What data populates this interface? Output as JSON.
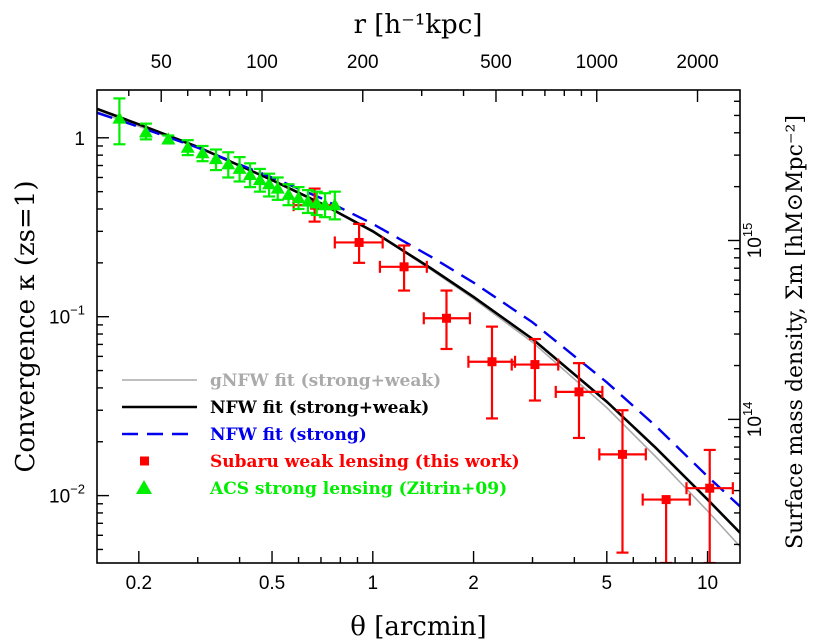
{
  "chart_data": {
    "type": "scatter",
    "xlabel_bottom": "θ [arcmin]",
    "xlabel_top": "r [h⁻¹kpc]",
    "ylabel_left": "Convergence κ (zs=1)",
    "ylabel_right": "Surface mass density, Σm [hM⊙Mpc⁻²]",
    "x_scale": "log",
    "y_scale": "log",
    "xlim": [
      0.15,
      12.5
    ],
    "ylim": [
      0.0042,
      1.85
    ],
    "bottom_ticks": [
      {
        "value": 0.2,
        "label": "0.2"
      },
      {
        "value": 0.5,
        "label": "0.5"
      },
      {
        "value": 1,
        "label": "1"
      },
      {
        "value": 2,
        "label": "2"
      },
      {
        "value": 5,
        "label": "5"
      },
      {
        "value": 10,
        "label": "10"
      }
    ],
    "left_ticks": [
      {
        "value": 1,
        "label": "1"
      },
      {
        "value": 0.1,
        "label": "10",
        "sup": "−1"
      },
      {
        "value": 0.01,
        "label": "10",
        "sup": "−2"
      }
    ],
    "top_ticks": [
      {
        "theta": 0.2333,
        "label": "50"
      },
      {
        "theta": 0.4667,
        "label": "100"
      },
      {
        "theta": 0.9333,
        "label": "200"
      },
      {
        "theta": 2.333,
        "label": "500"
      },
      {
        "theta": 4.667,
        "label": "1000"
      },
      {
        "theta": 9.333,
        "label": "2000"
      }
    ],
    "right_ticks": [
      {
        "kappa": 0.2667,
        "label": "10",
        "sup": "15"
      },
      {
        "kappa": 0.02667,
        "label": "10",
        "sup": "14"
      }
    ],
    "legend": [
      {
        "label": "gNFW fit (strong+weak)",
        "style": "line-gray"
      },
      {
        "label": "NFW fit (strong+weak)",
        "style": "line-black"
      },
      {
        "label": "NFW fit (strong)",
        "style": "line-blue-dashed"
      },
      {
        "label": "Subaru weak lensing (this work)",
        "style": "square-red"
      },
      {
        "label": "ACS strong lensing (Zitrin+09)",
        "style": "triangle-green"
      }
    ],
    "series": [
      {
        "name": "Subaru weak lensing (this work)",
        "marker": "square",
        "color": "#ff0000",
        "points": [
          {
            "x": 0.67,
            "y": 0.42,
            "xlo": 0.58,
            "xhi": 0.77,
            "ylo": 0.34,
            "yhi": 0.52
          },
          {
            "x": 0.91,
            "y": 0.26,
            "xlo": 0.77,
            "xhi": 1.07,
            "ylo": 0.2,
            "yhi": 0.33
          },
          {
            "x": 1.24,
            "y": 0.19,
            "xlo": 1.05,
            "xhi": 1.45,
            "ylo": 0.14,
            "yhi": 0.25
          },
          {
            "x": 1.66,
            "y": 0.098,
            "xlo": 1.42,
            "xhi": 1.95,
            "ylo": 0.066,
            "yhi": 0.14
          },
          {
            "x": 2.27,
            "y": 0.056,
            "xlo": 1.93,
            "xhi": 2.66,
            "ylo": 0.027,
            "yhi": 0.088
          },
          {
            "x": 3.05,
            "y": 0.054,
            "xlo": 2.6,
            "xhi": 3.58,
            "ylo": 0.034,
            "yhi": 0.075
          },
          {
            "x": 4.13,
            "y": 0.038,
            "xlo": 3.52,
            "xhi": 4.85,
            "ylo": 0.021,
            "yhi": 0.055
          },
          {
            "x": 5.57,
            "y": 0.017,
            "xlo": 4.75,
            "xhi": 6.54,
            "ylo": 0.0048,
            "yhi": 0.03
          },
          {
            "x": 7.52,
            "y": 0.0095,
            "xlo": 6.4,
            "xhi": 8.85,
            "ylo": 0.0042,
            "yhi": 0.0095
          },
          {
            "x": 10.15,
            "y": 0.011,
            "xlo": 8.65,
            "xhi": 11.9,
            "ylo": 0.0042,
            "yhi": 0.018
          }
        ]
      },
      {
        "name": "ACS strong lensing (Zitrin+09)",
        "marker": "triangle",
        "color": "#00ee00",
        "points": [
          {
            "x": 0.175,
            "y": 1.28,
            "ylo": 0.92,
            "yhi": 1.66
          },
          {
            "x": 0.21,
            "y": 1.07,
            "ylo": 0.98,
            "yhi": 1.2
          },
          {
            "x": 0.245,
            "y": 0.98,
            "ylo": 0.93,
            "yhi": 1.03
          },
          {
            "x": 0.28,
            "y": 0.88,
            "ylo": 0.8,
            "yhi": 0.97
          },
          {
            "x": 0.31,
            "y": 0.82,
            "ylo": 0.74,
            "yhi": 0.9
          },
          {
            "x": 0.34,
            "y": 0.76,
            "ylo": 0.66,
            "yhi": 0.86
          },
          {
            "x": 0.37,
            "y": 0.71,
            "ylo": 0.6,
            "yhi": 0.83
          },
          {
            "x": 0.4,
            "y": 0.67,
            "ylo": 0.57,
            "yhi": 0.78
          },
          {
            "x": 0.43,
            "y": 0.62,
            "ylo": 0.53,
            "yhi": 0.72
          },
          {
            "x": 0.46,
            "y": 0.58,
            "ylo": 0.5,
            "yhi": 0.67
          },
          {
            "x": 0.49,
            "y": 0.55,
            "ylo": 0.47,
            "yhi": 0.63
          },
          {
            "x": 0.52,
            "y": 0.52,
            "ylo": 0.45,
            "yhi": 0.6
          },
          {
            "x": 0.56,
            "y": 0.48,
            "ylo": 0.42,
            "yhi": 0.55
          },
          {
            "x": 0.6,
            "y": 0.46,
            "ylo": 0.4,
            "yhi": 0.53
          },
          {
            "x": 0.64,
            "y": 0.44,
            "ylo": 0.38,
            "yhi": 0.51
          },
          {
            "x": 0.68,
            "y": 0.43,
            "ylo": 0.37,
            "yhi": 0.5
          },
          {
            "x": 0.72,
            "y": 0.42,
            "ylo": 0.36,
            "yhi": 0.49
          },
          {
            "x": 0.77,
            "y": 0.42,
            "ylo": 0.35,
            "yhi": 0.5
          }
        ]
      },
      {
        "name": "gNFW fit (strong+weak)",
        "type": "line",
        "color": "#aaaaaa",
        "x": [
          0.15,
          0.2,
          0.3,
          0.5,
          0.7,
          1,
          1.5,
          2,
          3,
          5,
          7,
          10,
          12.5
        ],
        "y": [
          1.4,
          1.16,
          0.88,
          0.58,
          0.43,
          0.3,
          0.182,
          0.126,
          0.072,
          0.031,
          0.0165,
          0.0082,
          0.0052
        ]
      },
      {
        "name": "NFW fit (strong+weak)",
        "type": "line",
        "color": "#000000",
        "x": [
          0.15,
          0.2,
          0.3,
          0.5,
          0.7,
          1,
          1.5,
          2,
          3,
          5,
          7,
          10,
          12.5
        ],
        "y": [
          1.45,
          1.19,
          0.89,
          0.58,
          0.43,
          0.3,
          0.185,
          0.129,
          0.075,
          0.0335,
          0.0185,
          0.0095,
          0.0062
        ]
      },
      {
        "name": "NFW fit (strong)",
        "type": "line",
        "dashed": true,
        "color": "#0000ee",
        "x": [
          0.15,
          0.2,
          0.3,
          0.5,
          0.7,
          1,
          1.5,
          2,
          3,
          5,
          7,
          10,
          12.5
        ],
        "y": [
          1.38,
          1.15,
          0.88,
          0.6,
          0.46,
          0.33,
          0.215,
          0.155,
          0.093,
          0.043,
          0.0245,
          0.0128,
          0.0087
        ]
      }
    ]
  }
}
